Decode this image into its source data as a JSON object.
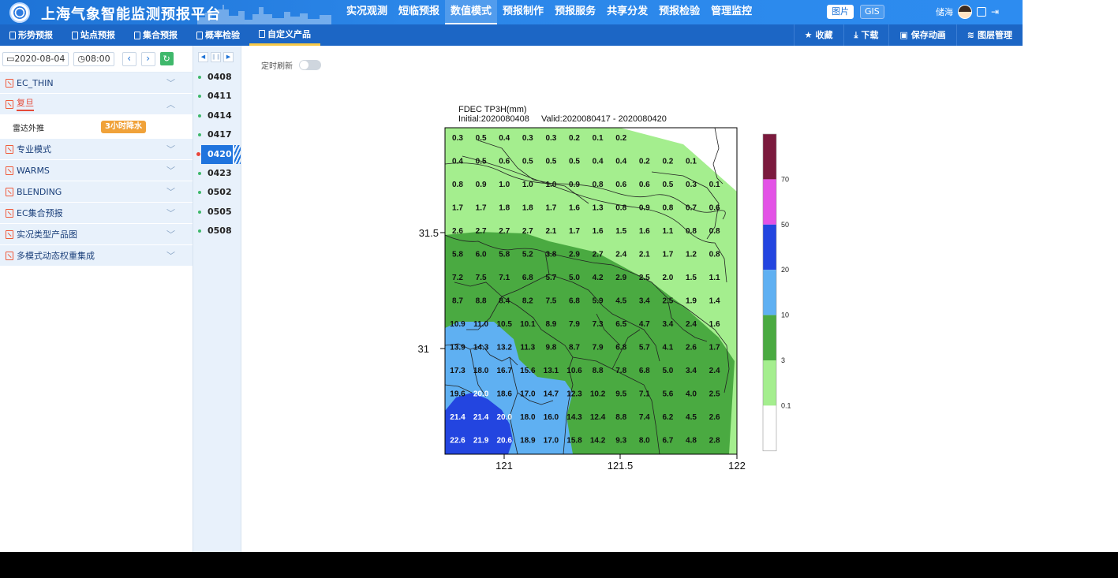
{
  "header": {
    "app_title": "上海气象智能监测预报平台",
    "nav": [
      "实况观测",
      "短临预报",
      "数值模式",
      "预报制作",
      "预报服务",
      "共享分发",
      "预报检验",
      "管理监控"
    ],
    "nav_active": "数值模式",
    "view_toggle": [
      "图片",
      "GIS"
    ],
    "user_name": "储海"
  },
  "subbar": {
    "tabs": [
      "形势预报",
      "站点预报",
      "集合预报",
      "概率检验",
      "自定义产品"
    ],
    "active_tab": "自定义产品",
    "actions": [
      {
        "icon": "star-icon",
        "glyph": "★",
        "label": "收藏"
      },
      {
        "icon": "download-icon",
        "glyph": "⤓",
        "label": "下载"
      },
      {
        "icon": "save-animation-icon",
        "glyph": "▣",
        "label": "保存动画"
      },
      {
        "icon": "layers-icon",
        "glyph": "≋",
        "label": "图层管理"
      }
    ]
  },
  "datebar": {
    "date": "2020-08-04",
    "time": "08:00"
  },
  "menu": [
    {
      "label": "EC_THIN",
      "open": false
    },
    {
      "label": "复旦",
      "open": true,
      "items": [
        {
          "label": "雷达外推",
          "badge": "3小时降水"
        }
      ]
    },
    {
      "label": "专业模式",
      "open": false
    },
    {
      "label": "WARMS",
      "open": false
    },
    {
      "label": "BLENDING",
      "open": false
    },
    {
      "label": "EC集合预报",
      "open": false
    },
    {
      "label": "实况类型产品图",
      "open": false
    },
    {
      "label": "多模式动态权重集成",
      "open": false
    }
  ],
  "times": [
    "0408",
    "0411",
    "0414",
    "0417",
    "0420",
    "0423",
    "0502",
    "0505",
    "0508"
  ],
  "active_time": "0420",
  "auto_refresh_label": "定时刷新",
  "map": {
    "title_line1": "FDEC TP3H(mm)",
    "initial": "Initial:2020080408",
    "valid": "Valid:2020080417 - 2020080420",
    "x_ticks": [
      "121",
      "121.5",
      "122"
    ],
    "y_ticks": [
      "31.5",
      "31"
    ],
    "legend_labels": [
      "70",
      "50",
      "20",
      "10",
      "3",
      "0.1"
    ],
    "legend_colors": [
      "#7b1a3d",
      "#e352e6",
      "#2345e0",
      "#5fb0f2",
      "#4aaa41",
      "#a4ee8e",
      "#ffffff"
    ],
    "grid": [
      [
        "0.3",
        "0.5",
        "0.4",
        "0.3",
        "0.3",
        "0.2",
        "0.1",
        "0.2",
        "",
        "",
        ""
      ],
      [
        "0.4",
        "0.5",
        "0.6",
        "0.5",
        "0.5",
        "0.5",
        "0.4",
        "0.4",
        "0.2",
        "0.2",
        "0.1"
      ],
      [
        "0.8",
        "0.9",
        "1.0",
        "1.0",
        "1.0",
        "0.9",
        "0.8",
        "0.6",
        "0.6",
        "0.5",
        "0.3",
        "0.1"
      ],
      [
        "1.7",
        "1.7",
        "1.8",
        "1.8",
        "1.7",
        "1.6",
        "1.3",
        "0.8",
        "0.9",
        "0.8",
        "0.7",
        "0.6"
      ],
      [
        "2.6",
        "2.7",
        "2.7",
        "2.7",
        "2.1",
        "1.7",
        "1.6",
        "1.5",
        "1.6",
        "1.1",
        "0.8",
        "0.8"
      ],
      [
        "5.8",
        "6.0",
        "5.8",
        "5.2",
        "3.8",
        "2.9",
        "2.7",
        "2.4",
        "2.1",
        "1.7",
        "1.2",
        "0.8"
      ],
      [
        "7.2",
        "7.5",
        "7.1",
        "6.8",
        "5.7",
        "5.0",
        "4.2",
        "2.9",
        "2.5",
        "2.0",
        "1.5",
        "1.1"
      ],
      [
        "8.7",
        "8.8",
        "8.4",
        "8.2",
        "7.5",
        "6.8",
        "5.9",
        "4.5",
        "3.4",
        "2.5",
        "1.9",
        "1.4"
      ],
      [
        "10.9",
        "11.0",
        "10.5",
        "10.1",
        "8.9",
        "7.9",
        "7.3",
        "6.5",
        "4.7",
        "3.4",
        "2.4",
        "1.6"
      ],
      [
        "13.9",
        "14.3",
        "13.2",
        "11.3",
        "9.8",
        "8.7",
        "7.9",
        "6.8",
        "5.7",
        "4.1",
        "2.6",
        "1.7"
      ],
      [
        "17.3",
        "18.0",
        "16.7",
        "15.6",
        "13.1",
        "10.6",
        "8.8",
        "7.8",
        "6.8",
        "5.0",
        "3.4",
        "2.4"
      ],
      [
        "19.6",
        "20.0",
        "18.6",
        "17.0",
        "14.7",
        "12.3",
        "10.2",
        "9.5",
        "7.1",
        "5.6",
        "4.0",
        "2.5"
      ],
      [
        "21.4",
        "21.4",
        "20.0",
        "18.0",
        "16.0",
        "14.3",
        "12.4",
        "8.8",
        "7.4",
        "6.2",
        "4.5",
        "2.6"
      ],
      [
        "22.6",
        "21.9",
        "20.6",
        "18.9",
        "17.0",
        "15.8",
        "14.2",
        "9.3",
        "8.0",
        "6.7",
        "4.8",
        "2.8"
      ]
    ]
  }
}
